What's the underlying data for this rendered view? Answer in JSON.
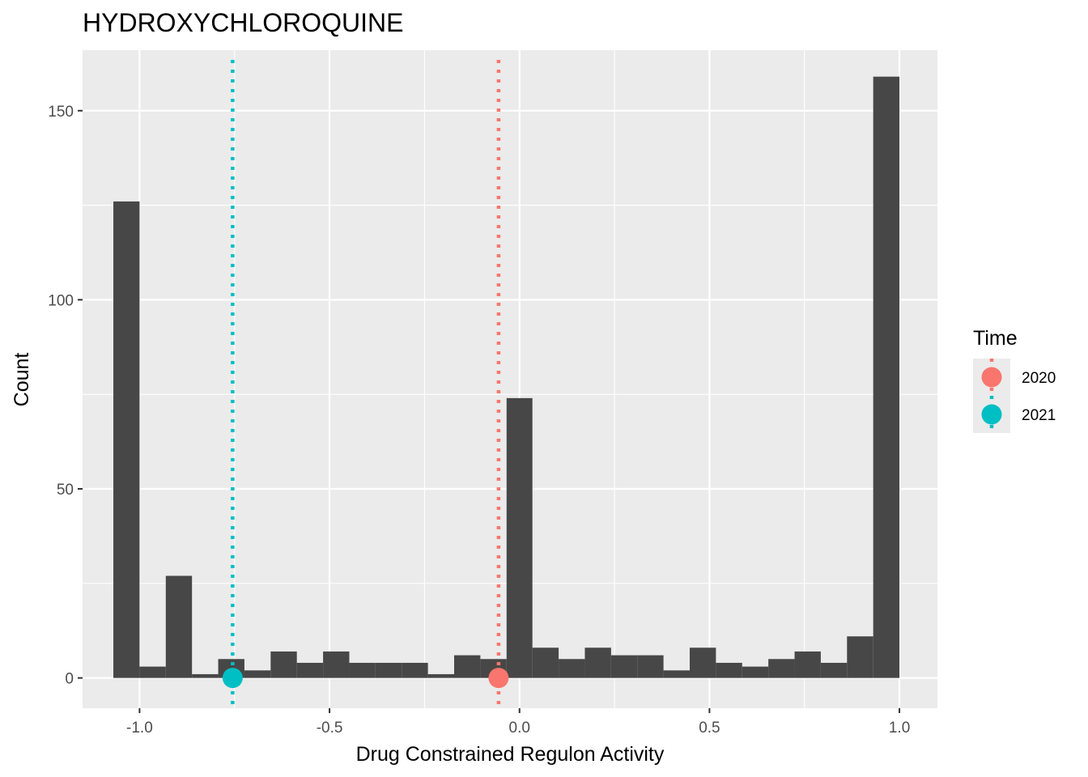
{
  "chart_data": {
    "type": "histogram",
    "title": "HYDROXYCHLOROQUINE",
    "xlabel": "Drug Constrained Regulon Activity",
    "ylabel": "Count",
    "xlim": [
      -1.15,
      1.1
    ],
    "ylim": [
      -8,
      166
    ],
    "x_ticks": [
      {
        "value": -1.0,
        "label": "-1.0"
      },
      {
        "value": -0.5,
        "label": "-0.5"
      },
      {
        "value": 0.0,
        "label": "0.0"
      },
      {
        "value": 0.5,
        "label": "0.5"
      },
      {
        "value": 1.0,
        "label": "1.0"
      }
    ],
    "x_minor_ticks": [
      -0.75,
      -0.25,
      0.25,
      0.75
    ],
    "y_ticks": [
      {
        "value": 0,
        "label": "0"
      },
      {
        "value": 50,
        "label": "50"
      },
      {
        "value": 100,
        "label": "100"
      },
      {
        "value": 150,
        "label": "150"
      }
    ],
    "y_minor_ticks": [
      25,
      75,
      125
    ],
    "grid": true,
    "bar_color": "#474747",
    "bins": [
      {
        "x0": -1.069,
        "x1": -1.0,
        "count": 126
      },
      {
        "x0": -1.0,
        "x1": -0.931,
        "count": 3
      },
      {
        "x0": -0.931,
        "x1": -0.862,
        "count": 27
      },
      {
        "x0": -0.862,
        "x1": -0.793,
        "count": 1
      },
      {
        "x0": -0.793,
        "x1": -0.724,
        "count": 5
      },
      {
        "x0": -0.724,
        "x1": -0.655,
        "count": 2
      },
      {
        "x0": -0.655,
        "x1": -0.586,
        "count": 7
      },
      {
        "x0": -0.586,
        "x1": -0.517,
        "count": 4
      },
      {
        "x0": -0.517,
        "x1": -0.448,
        "count": 7
      },
      {
        "x0": -0.448,
        "x1": -0.379,
        "count": 4
      },
      {
        "x0": -0.379,
        "x1": -0.31,
        "count": 4
      },
      {
        "x0": -0.31,
        "x1": -0.241,
        "count": 4
      },
      {
        "x0": -0.241,
        "x1": -0.172,
        "count": 1
      },
      {
        "x0": -0.172,
        "x1": -0.103,
        "count": 6
      },
      {
        "x0": -0.103,
        "x1": -0.034,
        "count": 5
      },
      {
        "x0": -0.034,
        "x1": 0.034,
        "count": 74
      },
      {
        "x0": 0.034,
        "x1": 0.103,
        "count": 8
      },
      {
        "x0": 0.103,
        "x1": 0.172,
        "count": 5
      },
      {
        "x0": 0.172,
        "x1": 0.241,
        "count": 8
      },
      {
        "x0": 0.241,
        "x1": 0.31,
        "count": 6
      },
      {
        "x0": 0.31,
        "x1": 0.379,
        "count": 6
      },
      {
        "x0": 0.379,
        "x1": 0.448,
        "count": 2
      },
      {
        "x0": 0.448,
        "x1": 0.517,
        "count": 8
      },
      {
        "x0": 0.517,
        "x1": 0.586,
        "count": 4
      },
      {
        "x0": 0.586,
        "x1": 0.655,
        "count": 3
      },
      {
        "x0": 0.655,
        "x1": 0.724,
        "count": 5
      },
      {
        "x0": 0.724,
        "x1": 0.793,
        "count": 7
      },
      {
        "x0": 0.793,
        "x1": 0.862,
        "count": 4
      },
      {
        "x0": 0.862,
        "x1": 0.931,
        "count": 11
      },
      {
        "x0": 0.931,
        "x1": 1.0,
        "count": 159
      }
    ],
    "markers": [
      {
        "name": "2020",
        "x": -0.055,
        "y": 0,
        "color": "#F8766D"
      },
      {
        "name": "2021",
        "x": -0.755,
        "y": 0,
        "color": "#00BFC4"
      }
    ],
    "legend": {
      "title": "Time",
      "position": "right",
      "items": [
        {
          "label": "2020",
          "color": "#F8766D"
        },
        {
          "label": "2021",
          "color": "#00BFC4"
        }
      ]
    }
  }
}
